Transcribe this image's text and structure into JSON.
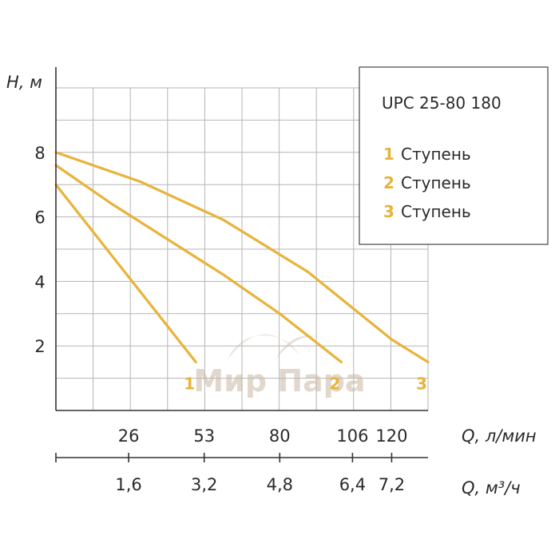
{
  "chart_data": {
    "type": "line",
    "title": "UPC 25-80 180",
    "ylabel": "H, м",
    "xlabel_top": "Q, л/мин",
    "xlabel_bottom": "Q, м³/ч",
    "ylim": [
      0,
      10
    ],
    "y_ticks": [
      "2",
      "4",
      "6",
      "8"
    ],
    "y_tick_values": [
      2,
      4,
      6,
      8
    ],
    "xlim": [
      0,
      133
    ],
    "x_ticks_top": [
      "26",
      "53",
      "80",
      "106",
      "120"
    ],
    "x_tick_values_top": [
      26,
      53,
      80,
      106,
      120
    ],
    "x_ticks_bottom": [
      "1,6",
      "3,2",
      "4,8",
      "6,4",
      "7,2"
    ],
    "x_tick_values_bottom": [
      1.6,
      3.2,
      4.8,
      6.4,
      7.2
    ],
    "grid": true,
    "legend_position": "top-right",
    "colors": {
      "curve": "#e8b33a",
      "grid": "#b5b5b5",
      "axis": "#333333"
    },
    "series": [
      {
        "name": "Ступень",
        "number": "1",
        "label": "1",
        "x": [
          0,
          10,
          20,
          30,
          40,
          50
        ],
        "y": [
          7.0,
          5.9,
          4.8,
          3.7,
          2.6,
          1.5
        ]
      },
      {
        "name": "Ступень",
        "number": "2",
        "label": "2",
        "x": [
          0,
          20,
          40,
          60,
          80,
          102
        ],
        "y": [
          7.6,
          6.4,
          5.3,
          4.2,
          3.0,
          1.5
        ]
      },
      {
        "name": "Ступень",
        "number": "3",
        "label": "3",
        "x": [
          0,
          30,
          60,
          90,
          120,
          133
        ],
        "y": [
          8.0,
          7.1,
          5.9,
          4.3,
          2.2,
          1.5
        ]
      }
    ]
  },
  "watermark": {
    "text": "Мир Пара"
  }
}
